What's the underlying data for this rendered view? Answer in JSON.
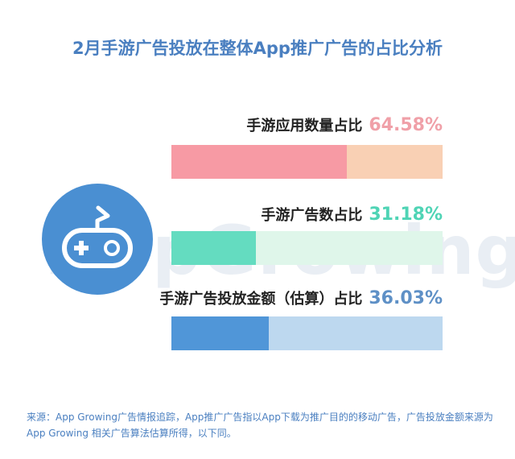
{
  "title": "2月手游广告投放在整体App推广广告的占比分析",
  "watermark": "AppGrowing",
  "chart_data": {
    "type": "bar",
    "orientation": "horizontal",
    "title": "2月手游广告投放在整体App推广广告的占比分析",
    "categories": [
      "手游应用数量占比",
      "手游广告数占比",
      "手游广告投放金额（估算）占比"
    ],
    "values": [
      64.58,
      31.18,
      36.03
    ],
    "value_labels": [
      "64.58%",
      "31.18%",
      "36.03%"
    ],
    "unit": "%",
    "ylim": [
      0,
      100
    ],
    "colors": [
      {
        "fill": "#f79aa4",
        "track": "#f9d0b4",
        "text": "#f0a0a8"
      },
      {
        "fill": "#64dcc0",
        "track": "#dff6ea",
        "text": "#4fd4b5"
      },
      {
        "fill": "#5096d8",
        "track": "#bdd8ef",
        "text": "#5e90c6"
      }
    ]
  },
  "icon": "gamepad-icon",
  "source_note": "来源：App Growing广告情报追踪，App推广广告指以App下载为推广目的的移动广告，广告投放金额来源为App Growing 相关广告算法估算所得，以下同。"
}
